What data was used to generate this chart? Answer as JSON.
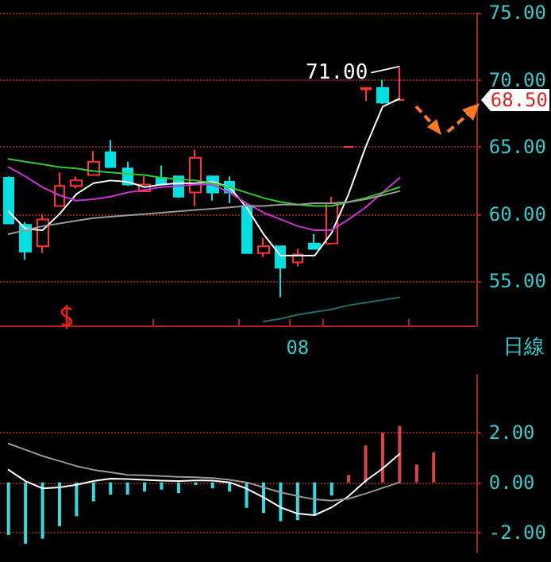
{
  "chart_data": [
    {
      "type": "candlestick",
      "categories": [
        null,
        null,
        null,
        null,
        null,
        null,
        null,
        null,
        null,
        null,
        null,
        null,
        null,
        null,
        null,
        null,
        null,
        "08",
        null,
        null,
        null,
        null,
        null,
        null,
        null,
        null,
        null,
        null
      ],
      "ohlc": [
        [
          62.7,
          62.8,
          59.3,
          59.3
        ],
        [
          59.2,
          59.4,
          56.6,
          57.2
        ],
        [
          57.6,
          60.0,
          57.1,
          59.6
        ],
        [
          60.6,
          63.1,
          60.6,
          62.1
        ],
        [
          62.1,
          62.8,
          61.9,
          62.5
        ],
        [
          62.9,
          64.7,
          62.9,
          63.9
        ],
        [
          64.6,
          65.5,
          63.5,
          63.5
        ],
        [
          63.4,
          63.9,
          62.1,
          62.2
        ],
        [
          61.7,
          62.8,
          61.7,
          62.2
        ],
        [
          62.7,
          63.6,
          62.2,
          62.2
        ],
        [
          62.8,
          62.8,
          61.2,
          61.3
        ],
        [
          61.6,
          64.8,
          60.6,
          64.2
        ],
        [
          62.8,
          62.8,
          61.0,
          61.6
        ],
        [
          62.4,
          62.8,
          60.8,
          61.6
        ],
        [
          60.6,
          60.8,
          57.1,
          57.1
        ],
        [
          57.1,
          58.2,
          56.8,
          57.6
        ],
        [
          57.6,
          57.6,
          53.8,
          56.0
        ],
        [
          56.4,
          57.4,
          56.1,
          57.0
        ],
        [
          57.8,
          58.5,
          57.4,
          57.4
        ],
        [
          57.8,
          61.3,
          57.8,
          60.8
        ],
        [
          65.0,
          65.0,
          65.0,
          65.0
        ],
        [
          69.4,
          69.4,
          68.4,
          69.3
        ],
        [
          69.4,
          70.0,
          68.2,
          68.3
        ],
        [
          68.5,
          71.0,
          68.5,
          68.5
        ],
        null,
        null,
        null,
        null
      ],
      "colors": [
        "#00e0e0",
        "#00e0e0",
        "#ff3333",
        "#ff3333",
        "#ff3333",
        "#ff3333",
        "#00e0e0",
        "#00e0e0",
        "#ff3333",
        "#00e0e0",
        "#00e0e0",
        "#ff3333",
        "#00e0e0",
        "#00e0e0",
        "#00e0e0",
        "#ff3333",
        "#00e0e0",
        "#ff3333",
        "#00e0e0",
        "#ff3333",
        "#ff3333",
        "#ff3333",
        "#00e0e0",
        "#ff3333",
        null,
        null,
        null,
        null
      ],
      "series": [
        {
          "type": "line",
          "color": "#ffffff",
          "values": [
            60.2,
            58.9,
            58.8,
            60.0,
            61.5,
            62.3,
            62.5,
            62.4,
            62.0,
            62.2,
            62.3,
            62.3,
            62.4,
            62.0,
            60.5,
            58.5,
            56.9,
            56.9,
            56.9,
            58.6,
            61.5,
            65.0,
            68.0,
            68.6,
            null,
            null,
            null,
            null
          ]
        },
        {
          "type": "line",
          "color": "#cc33cc",
          "values": [
            63.5,
            62.8,
            62.0,
            61.4,
            61.0,
            61.1,
            61.3,
            61.6,
            61.8,
            62.0,
            62.1,
            62.2,
            62.2,
            61.6,
            60.8,
            60.1,
            59.6,
            59.1,
            58.8,
            58.8,
            59.6,
            60.5,
            61.6,
            62.7,
            null,
            null,
            null,
            null
          ]
        },
        {
          "type": "line",
          "color": "#33cc33",
          "values": [
            64.1,
            63.9,
            63.7,
            63.5,
            63.4,
            63.2,
            63.1,
            63.0,
            62.9,
            62.7,
            62.6,
            62.5,
            62.3,
            62.0,
            61.6,
            61.2,
            60.9,
            60.7,
            60.6,
            60.6,
            60.9,
            61.2,
            61.6,
            62.0,
            null,
            null,
            null,
            null
          ]
        },
        {
          "type": "line",
          "color": "#999999",
          "values": [
            58.5,
            58.8,
            59.1,
            59.3,
            59.5,
            59.7,
            59.8,
            59.9,
            60.0,
            60.1,
            60.2,
            60.3,
            60.4,
            60.5,
            60.6,
            60.6,
            60.7,
            60.7,
            60.8,
            60.8,
            60.9,
            61.1,
            61.4,
            61.7,
            null,
            null,
            null,
            null
          ]
        },
        {
          "type": "line",
          "color": "#2a6b6b",
          "values": [
            null,
            null,
            null,
            null,
            null,
            null,
            null,
            null,
            null,
            null,
            null,
            null,
            null,
            null,
            null,
            52.0,
            52.2,
            52.5,
            52.7,
            52.9,
            53.2,
            53.4,
            53.6,
            53.8,
            null,
            null,
            null,
            null
          ]
        }
      ],
      "ylim": [
        51.7,
        75
      ],
      "yticks": [
        {
          "value": 55,
          "label": "55.00"
        },
        {
          "value": 60,
          "label": "60.00"
        },
        {
          "value": 65,
          "label": "65.00"
        },
        {
          "value": 70,
          "label": "70.00"
        },
        {
          "value": 75,
          "label": "75.00"
        }
      ],
      "grid": "y",
      "marker": "none",
      "annotations": [
        "71.00",
        "68.50",
        "日線"
      ]
    },
    {
      "type": "bar",
      "categories": [
        null,
        null,
        null,
        null,
        null,
        null,
        null,
        null,
        null,
        null,
        null,
        null,
        null,
        null,
        null,
        null,
        null,
        null,
        null,
        null,
        null,
        null,
        null,
        null,
        null,
        null,
        null,
        null
      ],
      "series": [
        {
          "type": "bar",
          "values": [
            -2.1,
            -2.45,
            -2.25,
            -1.75,
            -1.35,
            -0.76,
            -0.49,
            -0.49,
            -0.37,
            -0.29,
            -0.43,
            -0.1,
            -0.24,
            -0.37,
            -1.02,
            -1.22,
            -1.55,
            -1.51,
            -1.31,
            -0.53,
            0.29,
            1.47,
            1.98,
            2.25,
            0.71,
            1.2,
            null,
            null
          ],
          "colors": [
            "#33dddd",
            "#33dddd",
            "#33dddd",
            "#33dddd",
            "#33dddd",
            "#33dddd",
            "#33dddd",
            "#33dddd",
            "#33dddd",
            "#33dddd",
            "#33dddd",
            "#33dddd",
            "#33dddd",
            "#33dddd",
            "#33dddd",
            "#33dddd",
            "#33dddd",
            "#33dddd",
            "#33dddd",
            "#33dddd",
            "#dd4444",
            "#dd4444",
            "#dd4444",
            "#dd4444",
            "#dd4444",
            "#dd4444",
            null,
            null
          ]
        },
        {
          "type": "line",
          "color": "#ffffff",
          "values": [
            0.5,
            0.05,
            -0.24,
            -0.2,
            -0.1,
            0.05,
            0.15,
            0.13,
            0.1,
            0.07,
            0.05,
            0.08,
            0.07,
            0,
            -0.25,
            -0.6,
            -1.0,
            -1.25,
            -1.31,
            -1.0,
            -0.55,
            0.06,
            0.55,
            1.14,
            null,
            null,
            null,
            null
          ]
        },
        {
          "type": "line",
          "color": "#999999",
          "values": [
            1.55,
            1.3,
            1.05,
            0.85,
            0.65,
            0.5,
            0.4,
            0.3,
            0.28,
            0.25,
            0.22,
            0.2,
            0.17,
            0.1,
            0,
            -0.2,
            -0.4,
            -0.55,
            -0.68,
            -0.73,
            -0.65,
            -0.45,
            -0.22,
            0,
            null,
            null,
            null,
            null
          ]
        }
      ],
      "ylim": [
        -2.8,
        4.3
      ],
      "yticks": [
        {
          "value": -2,
          "label": "-2.00"
        },
        {
          "value": 0,
          "label": "0.00"
        },
        {
          "value": 2,
          "label": "2.00"
        }
      ],
      "grid": "y",
      "marker": "none",
      "tick_labels": "y"
    }
  ]
}
